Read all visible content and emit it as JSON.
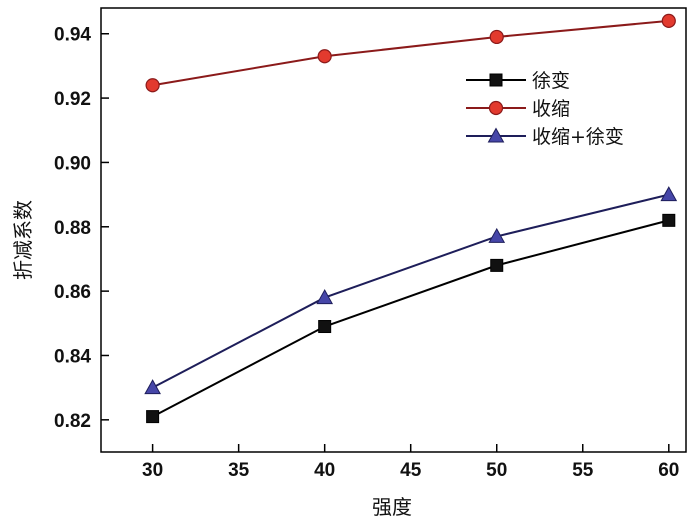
{
  "chart_data": {
    "type": "line",
    "xlabel": "强度",
    "ylabel": "折减系数",
    "x": [
      30,
      40,
      50,
      60
    ],
    "xlim": [
      27,
      61
    ],
    "ylim": [
      0.81,
      0.948
    ],
    "xticks": [
      30,
      35,
      40,
      45,
      50,
      55,
      60
    ],
    "xtick_labels": [
      "30",
      "35",
      "40",
      "45",
      "50",
      "55",
      "60"
    ],
    "yticks": [
      0.82,
      0.84,
      0.86,
      0.88,
      0.9,
      0.92,
      0.94
    ],
    "ytick_labels": [
      "0.82",
      "0.84",
      "0.86",
      "0.88",
      "0.90",
      "0.92",
      "0.94"
    ],
    "grid": false,
    "legend_position": "upper-right",
    "series": [
      {
        "name": "徐变",
        "values": [
          0.821,
          0.849,
          0.868,
          0.882
        ],
        "marker": "square",
        "line_color": "#000000",
        "fill": "#111111"
      },
      {
        "name": "收缩",
        "values": [
          0.924,
          0.933,
          0.939,
          0.944
        ],
        "marker": "circle",
        "line_color": "#8b1a1a",
        "fill": "#e23a2e"
      },
      {
        "name": "收缩+徐变",
        "values": [
          0.83,
          0.858,
          0.877,
          0.89
        ],
        "marker": "triangle",
        "line_color": "#1e1e5a",
        "fill": "#4646a8"
      }
    ]
  }
}
